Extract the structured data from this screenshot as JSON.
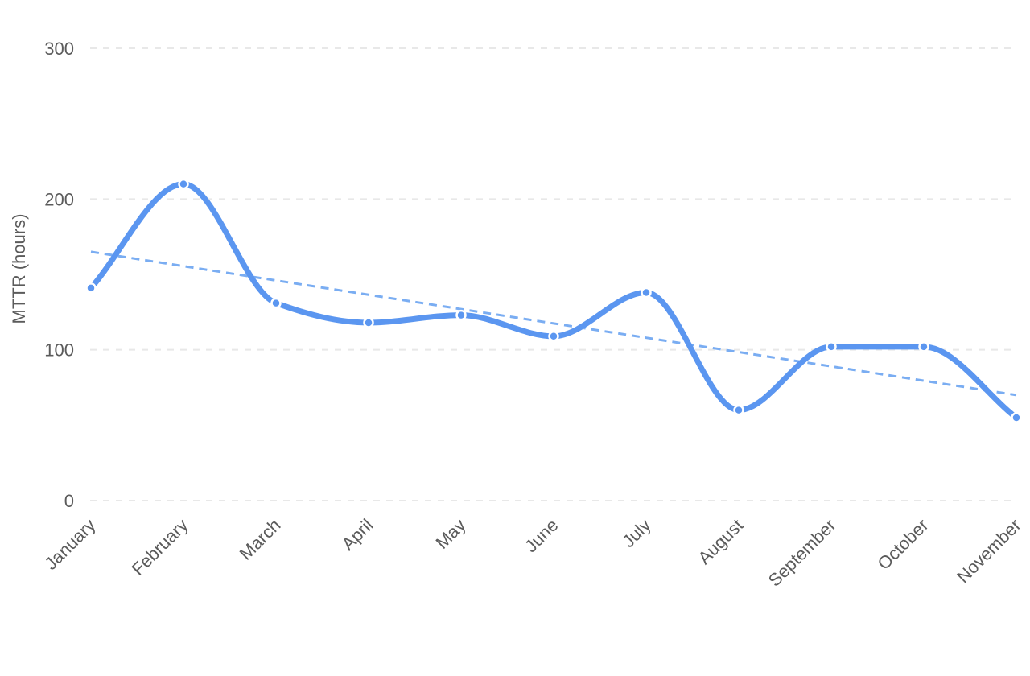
{
  "chart_data": {
    "type": "line",
    "categories": [
      "January",
      "February",
      "March",
      "April",
      "May",
      "June",
      "July",
      "August",
      "September",
      "October",
      "November"
    ],
    "series": [
      {
        "values": [
          141,
          210,
          131,
          118,
          123,
          109,
          138,
          60,
          102,
          102,
          55
        ],
        "color": "#5b96f0"
      },
      {
        "values": [
          165,
          155.5,
          146,
          136.5,
          127,
          117.5,
          108,
          98.5,
          89,
          79.5,
          70
        ],
        "color": "#7aadf2",
        "style": "dashed"
      }
    ],
    "xlabel": "",
    "ylabel": "MTTR (hours)",
    "ylim": [
      0,
      300
    ],
    "yticks": [
      0,
      100,
      200,
      300
    ],
    "grid": true,
    "smooth": true,
    "marker_fill": "#ffffff"
  }
}
